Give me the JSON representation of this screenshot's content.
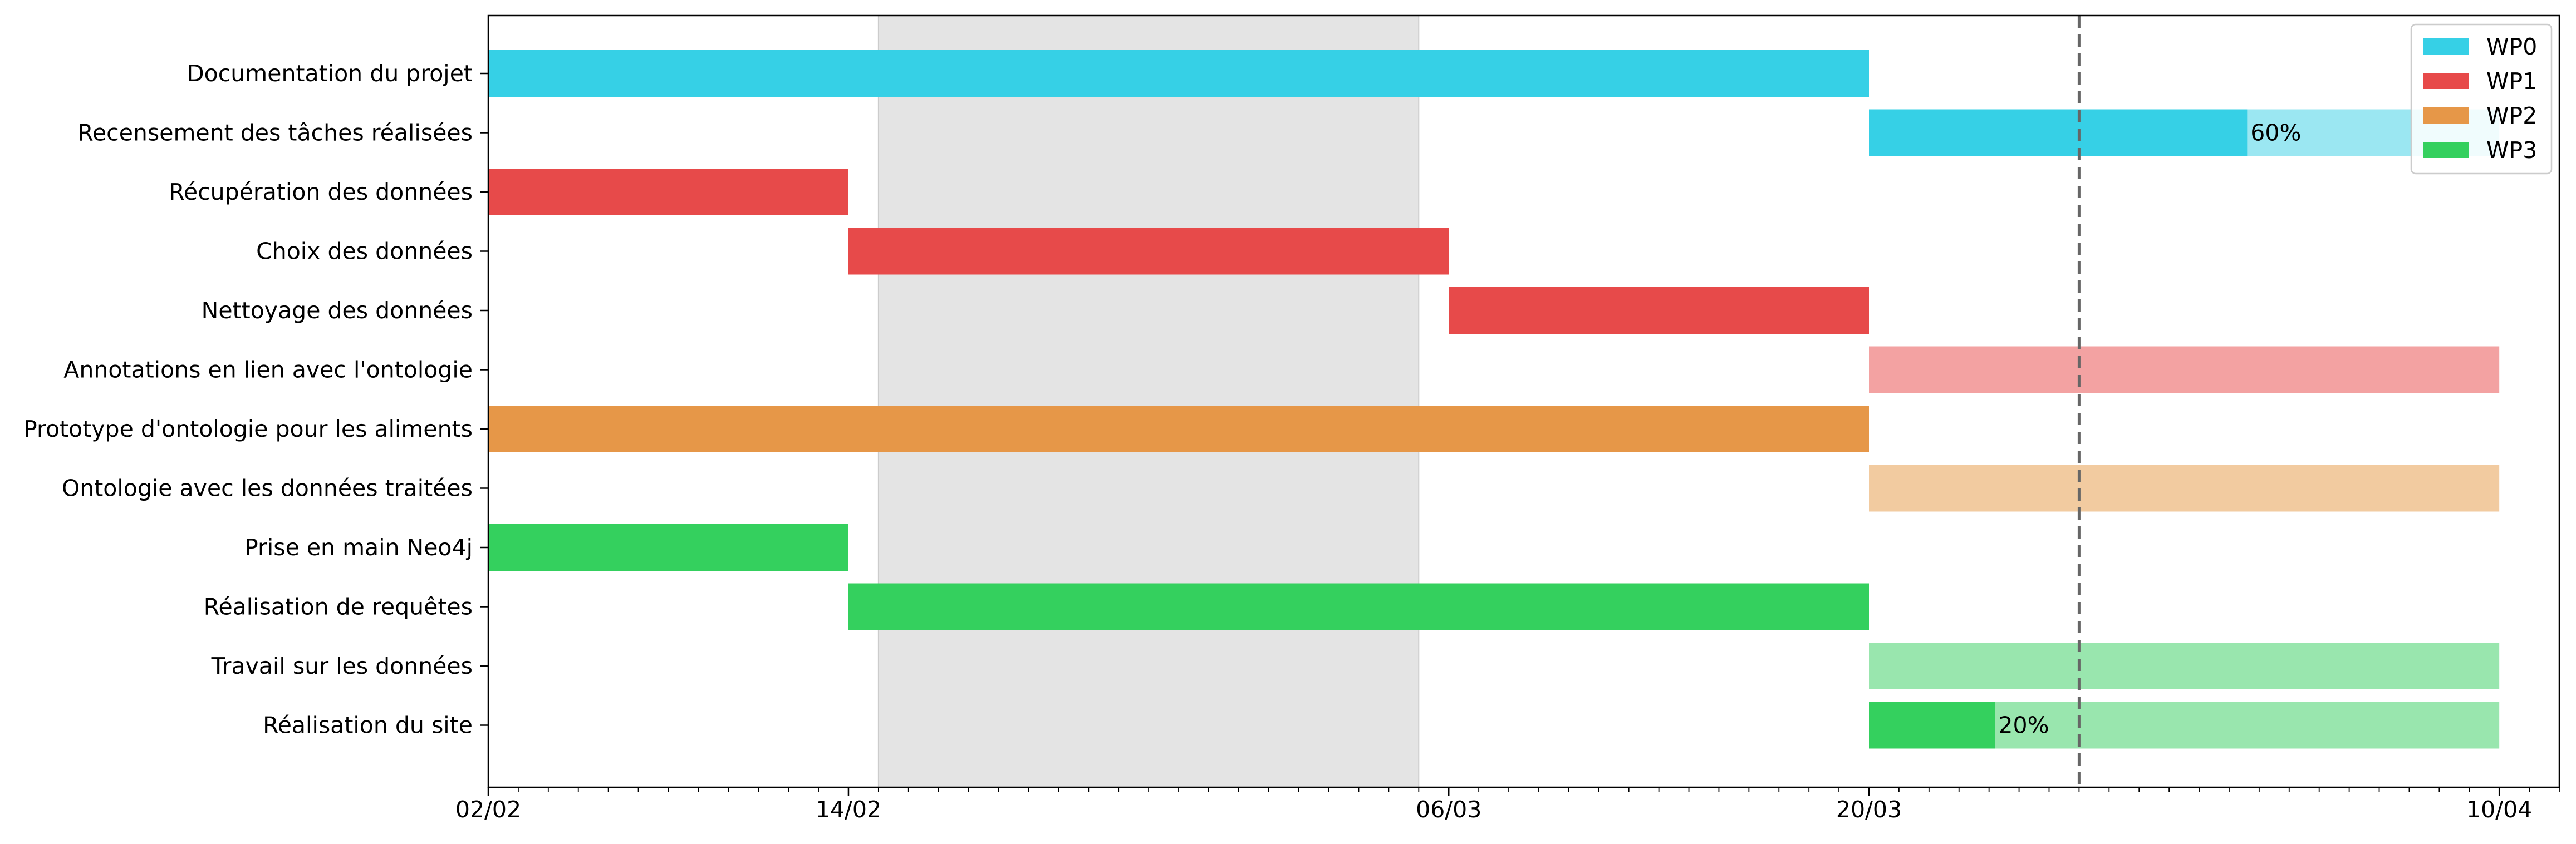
{
  "chart_data": {
    "type": "gantt",
    "x_axis": {
      "type": "date",
      "year_assumed": 2023,
      "range": [
        "2023-02-02",
        "2023-04-12"
      ],
      "major_ticks": [
        {
          "date": "2023-02-02",
          "label": "02/02"
        },
        {
          "date": "2023-02-14",
          "label": "14/02"
        },
        {
          "date": "2023-03-06",
          "label": "06/03"
        },
        {
          "date": "2023-03-20",
          "label": "20/03"
        },
        {
          "date": "2023-04-10",
          "label": "10/04"
        }
      ],
      "minor_ticks": "daily"
    },
    "shaded_period": {
      "start": "2023-02-15",
      "end": "2023-03-05",
      "color": "#e4e4e4"
    },
    "today_line": {
      "date": "2023-03-27",
      "style": "dashed",
      "color": "#666666"
    },
    "legend": {
      "placement": "top-right",
      "entries": [
        {
          "label": "WP0",
          "color": "#36d0e6"
        },
        {
          "label": "WP1",
          "color": "#e74a4a"
        },
        {
          "label": "WP2",
          "color": "#e69748"
        },
        {
          "label": "WP3",
          "color": "#34d05e"
        }
      ]
    },
    "tasks": [
      {
        "name": "Documentation du projet",
        "group": "WP0",
        "start": "2023-02-02",
        "end": "2023-03-20",
        "progress": 1.0
      },
      {
        "name": "Recensement des tâches réalisées",
        "group": "WP0",
        "start": "2023-03-20",
        "end": "2023-04-10",
        "progress": 0.6,
        "progress_label": "60%"
      },
      {
        "name": "Récupération des données",
        "group": "WP1",
        "start": "2023-02-02",
        "end": "2023-02-14",
        "progress": 1.0
      },
      {
        "name": "Choix des données",
        "group": "WP1",
        "start": "2023-02-14",
        "end": "2023-03-06",
        "progress": 1.0
      },
      {
        "name": "Nettoyage des données",
        "group": "WP1",
        "start": "2023-03-06",
        "end": "2023-03-20",
        "progress": 1.0
      },
      {
        "name": "Annotations en lien avec l'ontologie",
        "group": "WP1",
        "start": "2023-03-20",
        "end": "2023-04-10",
        "progress": 0.0
      },
      {
        "name": "Prototype d'ontologie pour les aliments",
        "group": "WP2",
        "start": "2023-02-02",
        "end": "2023-03-20",
        "progress": 1.0
      },
      {
        "name": "Ontologie avec les données traitées",
        "group": "WP2",
        "start": "2023-03-20",
        "end": "2023-04-10",
        "progress": 0.0
      },
      {
        "name": "Prise en main Neo4j",
        "group": "WP3",
        "start": "2023-02-02",
        "end": "2023-02-14",
        "progress": 1.0
      },
      {
        "name": "Réalisation de requêtes",
        "group": "WP3",
        "start": "2023-02-14",
        "end": "2023-03-20",
        "progress": 1.0
      },
      {
        "name": "Travail sur les données",
        "group": "WP3",
        "start": "2023-03-20",
        "end": "2023-04-10",
        "progress": 0.0
      },
      {
        "name": "Réalisation du site",
        "group": "WP3",
        "start": "2023-03-20",
        "end": "2023-04-10",
        "progress": 0.2,
        "progress_label": "20%"
      }
    ],
    "colors": {
      "WP0": {
        "done": "#36d0e6",
        "todo": "#9be7f2"
      },
      "WP1": {
        "done": "#e74a4a",
        "todo": "#f3a2a2"
      },
      "WP2": {
        "done": "#e69748",
        "todo": "#f2cba0"
      },
      "WP3": {
        "done": "#34d05e",
        "todo": "#99e6ae"
      }
    }
  }
}
